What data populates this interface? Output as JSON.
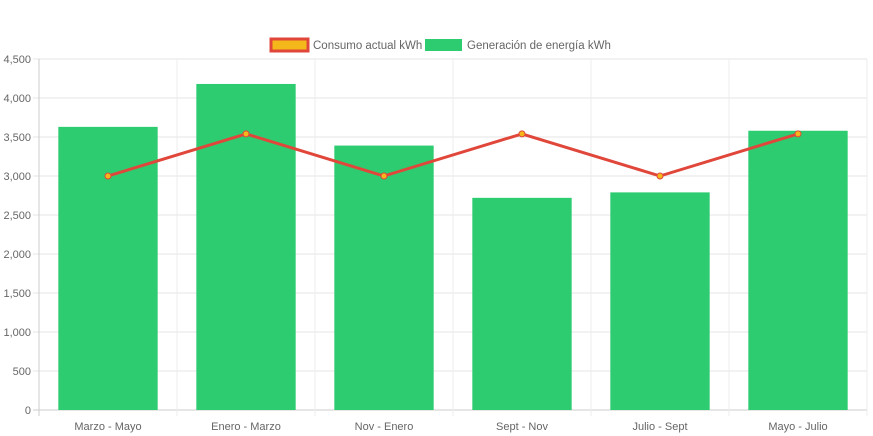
{
  "chart_data": {
    "type": "bar",
    "categories": [
      "Marzo - Mayo",
      "Enero - Marzo",
      "Nov - Enero",
      "Sept - Nov",
      "Julio - Sept",
      "Mayo - Julio"
    ],
    "series": [
      {
        "name": "Consumo actual kWh",
        "kind": "line",
        "values": [
          3000,
          3540,
          3000,
          3540,
          3000,
          3540
        ],
        "stroke": "#e0473a",
        "fill": "#f5b81a"
      },
      {
        "name": "Generación de energía kWh",
        "kind": "bar",
        "values": [
          3630,
          4180,
          3390,
          2720,
          2790,
          3580
        ],
        "fill": "#2ecc71"
      }
    ],
    "ylim": [
      0,
      4500
    ],
    "yticks": [
      "0",
      "500",
      "1,000",
      "1,500",
      "2,000",
      "2,500",
      "3,000",
      "3,500",
      "4,000",
      "4,500"
    ],
    "title": "",
    "xlabel": "",
    "ylabel": "",
    "legend_position": "top",
    "grid": true
  }
}
